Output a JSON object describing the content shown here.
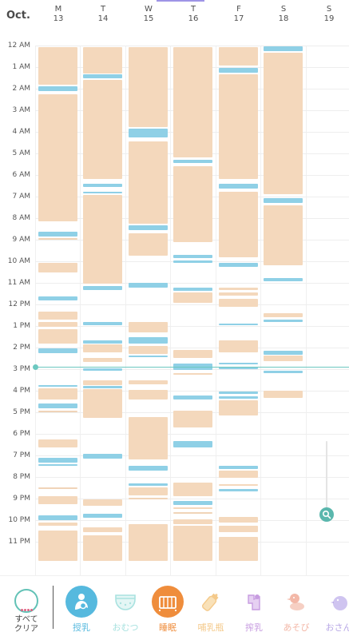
{
  "header": {
    "month": "Oct.",
    "days": [
      {
        "dow": "M",
        "num": "13"
      },
      {
        "dow": "T",
        "num": "14"
      },
      {
        "dow": "W",
        "num": "15"
      },
      {
        "dow": "T",
        "num": "16"
      },
      {
        "dow": "F",
        "num": "17"
      },
      {
        "dow": "S",
        "num": "18"
      },
      {
        "dow": "S",
        "num": "19"
      }
    ]
  },
  "hours": [
    "12 AM",
    "1 AM",
    "2 AM",
    "3 AM",
    "4 AM",
    "5 AM",
    "6 AM",
    "7 AM",
    "8 AM",
    "9 AM",
    "10 AM",
    "11 AM",
    "12 PM",
    "1 PM",
    "2 PM",
    "3 PM",
    "4 PM",
    "5 PM",
    "6 PM",
    "7 PM",
    "8 PM",
    "9 PM",
    "10 PM",
    "11 PM"
  ],
  "categories": [
    {
      "label": "授乳",
      "icon": "breastfeeding-icon",
      "active": true,
      "color": "#56b9de"
    },
    {
      "label": "おむつ",
      "icon": "diaper-icon",
      "active": false,
      "color": "#a9e2e0"
    },
    {
      "label": "睡眠",
      "icon": "crib-icon",
      "active": true,
      "color": "#ef8d3c"
    },
    {
      "label": "哺乳瓶",
      "icon": "bottle-icon",
      "active": false,
      "color": "#f4c98a"
    },
    {
      "label": "搾乳",
      "icon": "breast-pump-icon",
      "active": false,
      "color": "#c79ce0"
    },
    {
      "label": "あそび",
      "icon": "duck-icon",
      "active": false,
      "color": "#f3b8a8"
    },
    {
      "label": "おさん",
      "icon": "bird-icon",
      "active": false,
      "color": "#b8a8e6"
    }
  ],
  "all_clear": {
    "line1": "すべて",
    "line2": "クリア"
  },
  "colors": {
    "sleep": "#f4d8bc",
    "feed": "#8fd0e6",
    "now": "#6cc8c0"
  }
}
